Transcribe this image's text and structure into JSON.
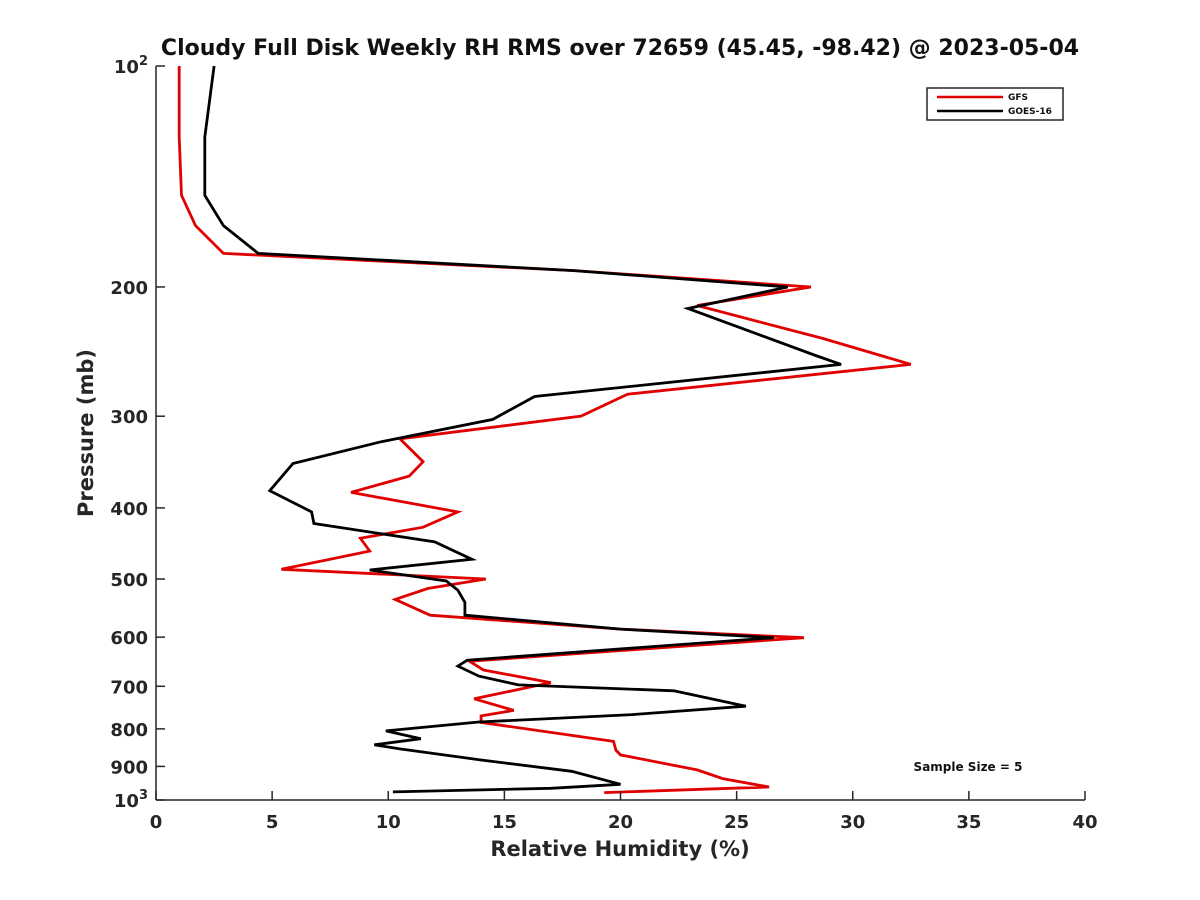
{
  "chart_data": {
    "type": "line",
    "title": "Cloudy Full Disk Weekly RH RMS over 72659 (45.45, -98.42) @ 2023-05-04",
    "xlabel": "Relative Humidity (%)",
    "ylabel": "Pressure (mb)",
    "xlim": [
      0,
      40
    ],
    "ylim": [
      100,
      1000
    ],
    "y_scale": "log",
    "y_reversed": true,
    "x_ticks": [
      "0",
      "5",
      "10",
      "15",
      "20",
      "25",
      "30",
      "35",
      "40"
    ],
    "y_ticks": [
      {
        "value": 100,
        "base": "10",
        "exp": "2"
      },
      {
        "value": 200,
        "label": "200"
      },
      {
        "value": 300,
        "label": "300"
      },
      {
        "value": 400,
        "label": "400"
      },
      {
        "value": 500,
        "label": "500"
      },
      {
        "value": 600,
        "label": "600"
      },
      {
        "value": 700,
        "label": "700"
      },
      {
        "value": 800,
        "label": "800"
      },
      {
        "value": 900,
        "label": "900"
      },
      {
        "value": 1000,
        "base": "10",
        "exp": "3"
      }
    ],
    "grid": false,
    "legend_position": "top-right",
    "annotation": "Sample Size = 5",
    "series": [
      {
        "name": "GFS",
        "color": "#e00000",
        "points": [
          [
            1.0,
            100
          ],
          [
            1.0,
            125
          ],
          [
            1.1,
            150
          ],
          [
            1.7,
            165
          ],
          [
            2.9,
            180
          ],
          [
            18,
            190
          ],
          [
            28.2,
            200
          ],
          [
            23.3,
            212
          ],
          [
            28.7,
            235
          ],
          [
            32.5,
            255
          ],
          [
            20.3,
            280
          ],
          [
            18.3,
            300
          ],
          [
            10.5,
            322
          ],
          [
            11.5,
            346
          ],
          [
            10.9,
            362
          ],
          [
            8.4,
            381
          ],
          [
            13.0,
            405
          ],
          [
            11.5,
            425
          ],
          [
            8.8,
            440
          ],
          [
            9.2,
            458
          ],
          [
            5.4,
            485
          ],
          [
            14.2,
            500
          ],
          [
            11.7,
            515
          ],
          [
            10.3,
            533
          ],
          [
            11.8,
            560
          ],
          [
            20,
            585
          ],
          [
            27.9,
            601
          ],
          [
            13.5,
            647
          ],
          [
            14.1,
            665
          ],
          [
            17.0,
            692
          ],
          [
            13.7,
            728
          ],
          [
            15.4,
            755
          ],
          [
            14.0,
            768
          ],
          [
            14.0,
            784
          ],
          [
            19.7,
            832
          ],
          [
            19.8,
            855
          ],
          [
            20.0,
            868
          ],
          [
            23.3,
            910
          ],
          [
            24.4,
            935
          ],
          [
            26.4,
            960
          ],
          [
            19.3,
            977
          ]
        ]
      },
      {
        "name": "GOES-16",
        "color": "#000000",
        "points": [
          [
            2.5,
            100
          ],
          [
            2.1,
            125
          ],
          [
            2.1,
            150
          ],
          [
            2.9,
            165
          ],
          [
            4.4,
            180
          ],
          [
            18,
            190
          ],
          [
            27.2,
            200
          ],
          [
            22.9,
            214
          ],
          [
            28.4,
            248
          ],
          [
            29.5,
            255
          ],
          [
            16.3,
            282
          ],
          [
            14.5,
            303
          ],
          [
            9.7,
            325
          ],
          [
            5.9,
            348
          ],
          [
            4.9,
            379
          ],
          [
            6.7,
            405
          ],
          [
            6.8,
            420
          ],
          [
            12.0,
            445
          ],
          [
            13.6,
            470
          ],
          [
            9.2,
            486
          ],
          [
            12.5,
            503
          ],
          [
            13.0,
            518
          ],
          [
            13.3,
            538
          ],
          [
            13.3,
            560
          ],
          [
            20,
            585
          ],
          [
            26.6,
            601
          ],
          [
            13.4,
            645
          ],
          [
            13.0,
            657
          ],
          [
            13.9,
            678
          ],
          [
            15.6,
            697
          ],
          [
            22.3,
            710
          ],
          [
            25.4,
            745
          ],
          [
            20.5,
            765
          ],
          [
            13.9,
            783
          ],
          [
            9.9,
            805
          ],
          [
            11.4,
            825
          ],
          [
            9.4,
            841
          ],
          [
            10.5,
            852
          ],
          [
            14.0,
            882
          ],
          [
            17.9,
            914
          ],
          [
            20.0,
            952
          ],
          [
            17,
            964
          ],
          [
            10.2,
            975
          ]
        ]
      }
    ]
  }
}
